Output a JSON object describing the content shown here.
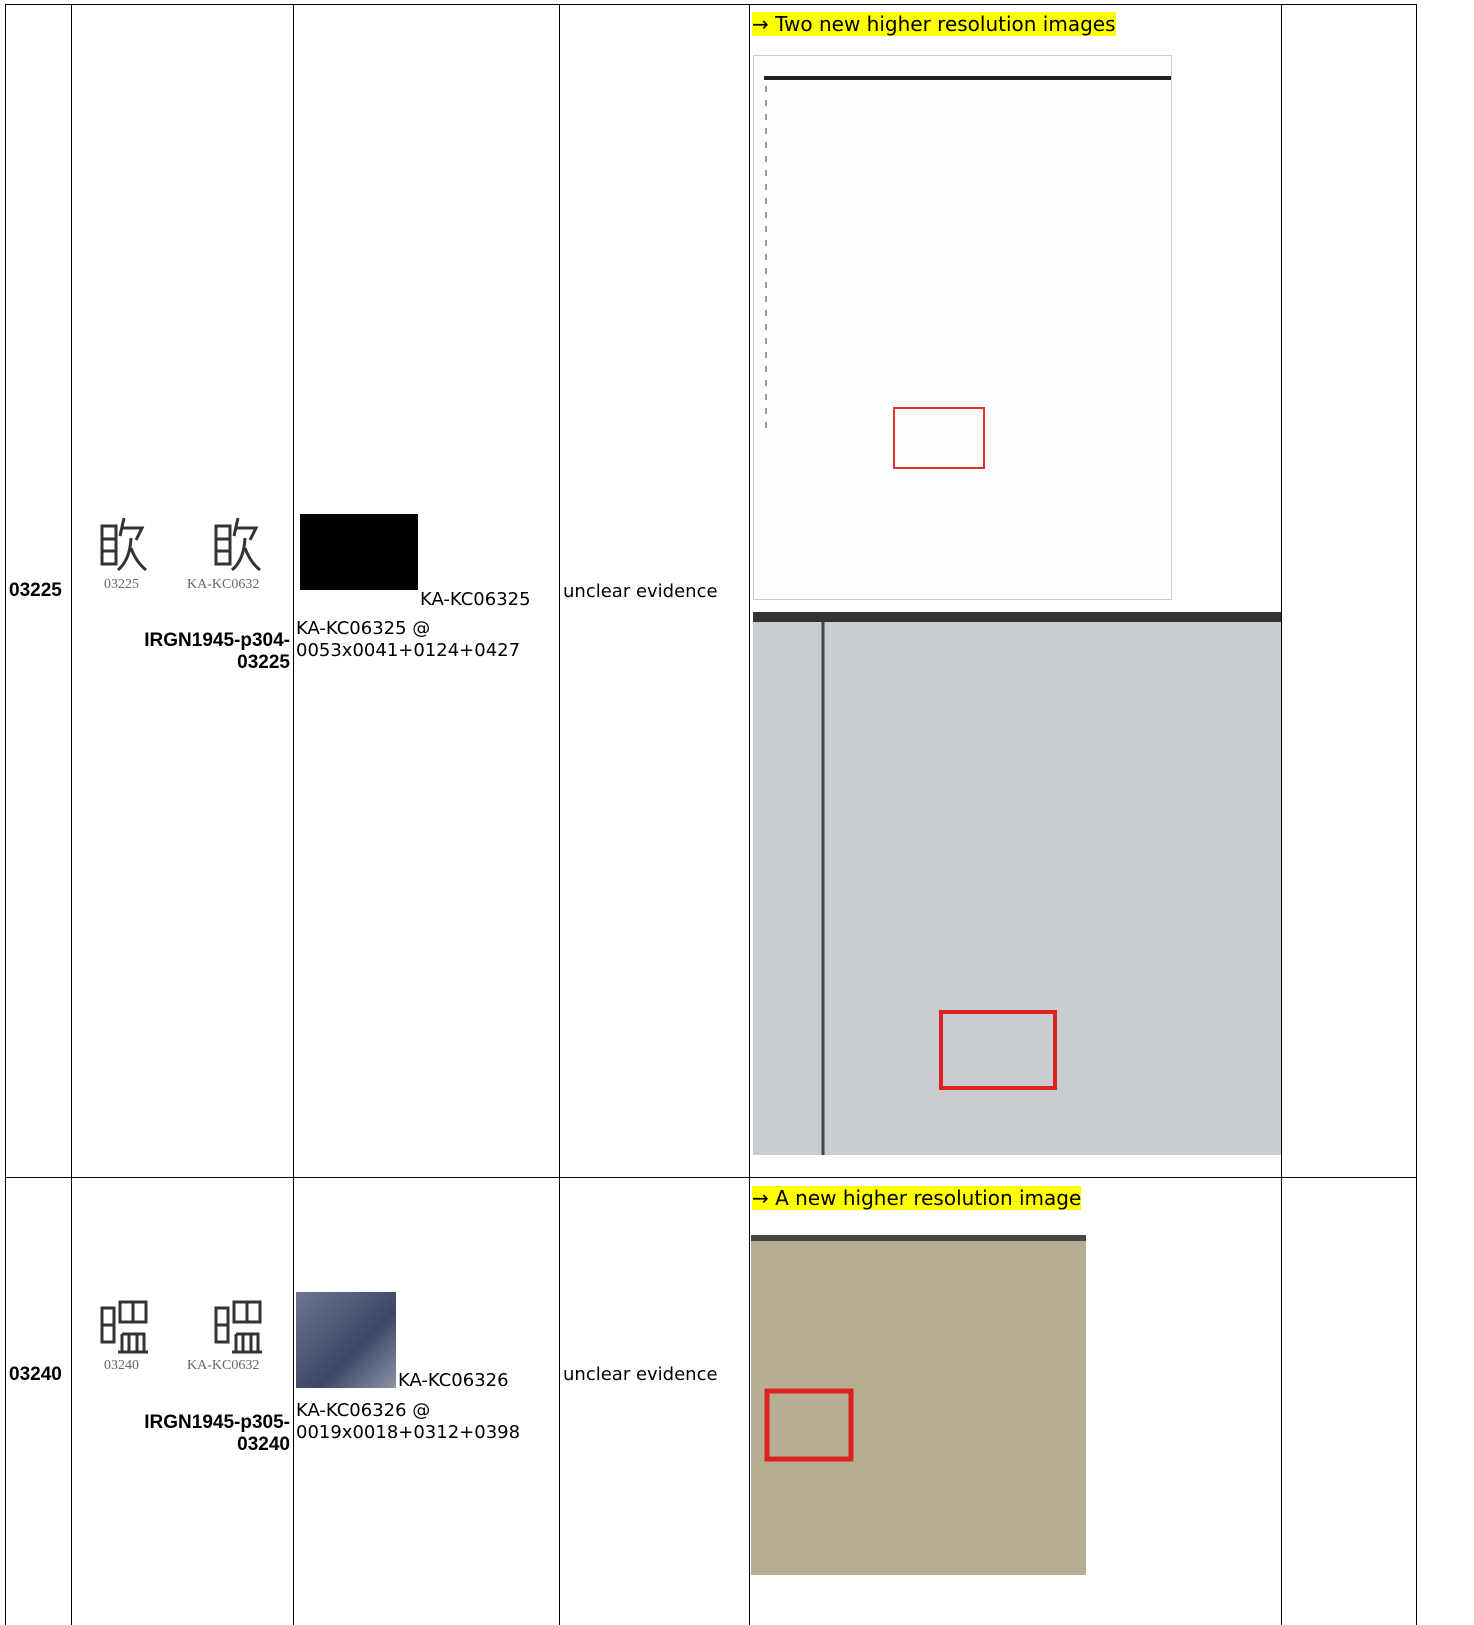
{
  "rows": [
    {
      "id": "03225",
      "glyph_labels": [
        "03225",
        "KA-KC0632"
      ],
      "irg_ref": "IRGN1945-p304-03225",
      "source_label": "KA-KC06325",
      "source_ref": "KA-KC06325 @ 0053x0041+0124+0427",
      "comment": "unclear evidence",
      "note": "→ Two new higher resolution images"
    },
    {
      "id": "03240",
      "glyph_labels": [
        "03240",
        "KA-KC0632"
      ],
      "irg_ref": "IRGN1945-p305-03240",
      "source_label": "KA-KC06326",
      "source_ref": "KA-KC06326 @ 0019x0018+0312+0398",
      "comment": "unclear evidence",
      "note": "→ A new higher resolution image"
    }
  ]
}
